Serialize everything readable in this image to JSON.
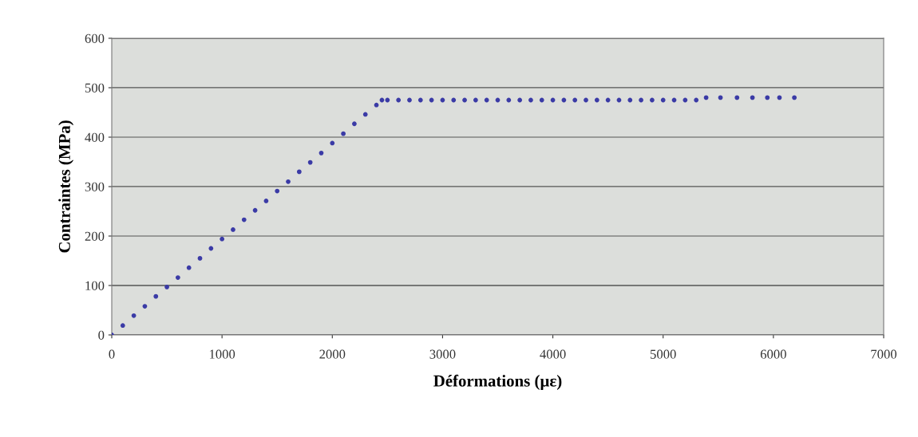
{
  "chart_data": {
    "type": "scatter",
    "xlabel": "Déformations (µε)",
    "ylabel": "Contraintes (MPa)",
    "x": [
      0,
      100,
      200,
      300,
      400,
      500,
      600,
      700,
      800,
      900,
      1000,
      1100,
      1200,
      1300,
      1400,
      1500,
      1600,
      1700,
      1800,
      1900,
      2000,
      2100,
      2200,
      2300,
      2400,
      2450,
      2500,
      2600,
      2700,
      2800,
      2900,
      3000,
      3100,
      3200,
      3300,
      3400,
      3500,
      3600,
      3700,
      3800,
      3900,
      4000,
      4100,
      4200,
      4300,
      4400,
      4500,
      4600,
      4700,
      4800,
      4900,
      5000,
      5100,
      5200,
      5300,
      5390,
      5520,
      5670,
      5810,
      5945,
      6055,
      6190
    ],
    "series": [
      {
        "color": "#3b3ba6",
        "values": [
          0,
          19,
          39,
          58,
          78,
          97,
          116,
          136,
          155,
          175,
          194,
          213,
          233,
          252,
          271,
          291,
          310,
          330,
          349,
          368,
          388,
          407,
          427,
          446,
          465,
          475,
          475,
          475,
          475,
          475,
          475,
          475,
          475,
          475,
          475,
          475,
          475,
          475,
          475,
          475,
          475,
          475,
          475,
          475,
          475,
          475,
          475,
          475,
          475,
          475,
          475,
          475,
          475,
          475,
          475,
          480,
          480,
          480,
          480,
          480,
          480,
          480
        ]
      }
    ],
    "xlim": [
      0,
      7000
    ],
    "xticks": [
      0,
      1000,
      2000,
      3000,
      4000,
      5000,
      6000,
      7000
    ],
    "ylim": [
      0,
      600
    ],
    "yticks": [
      0,
      100,
      200,
      300,
      400,
      500,
      600
    ],
    "grid": "y",
    "marker": "circle",
    "legend": false
  }
}
